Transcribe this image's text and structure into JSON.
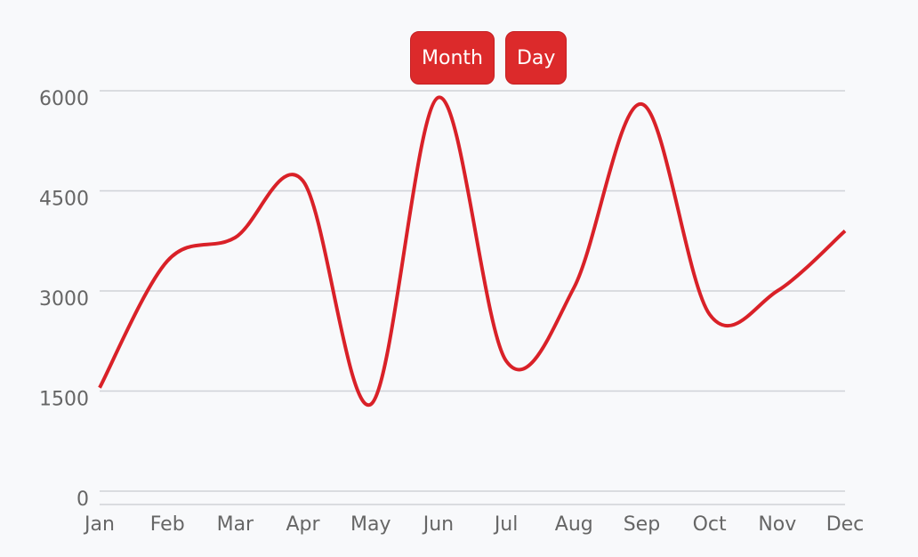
{
  "controls": {
    "buttons": [
      "Month",
      "Day"
    ]
  },
  "chart_data": {
    "type": "line",
    "categories": [
      "Jan",
      "Feb",
      "Mar",
      "Apr",
      "May",
      "Jun",
      "Jul",
      "Aug",
      "Sep",
      "Oct",
      "Nov",
      "Dec"
    ],
    "values": [
      1550,
      3450,
      3800,
      4650,
      1300,
      5900,
      1950,
      3050,
      5800,
      2650,
      3000,
      3900
    ],
    "color": "#d92128",
    "ylim": [
      -200,
      6000
    ],
    "yticks": [
      0,
      1500,
      3000,
      4500,
      6000
    ],
    "grid": true,
    "smooth": true
  }
}
